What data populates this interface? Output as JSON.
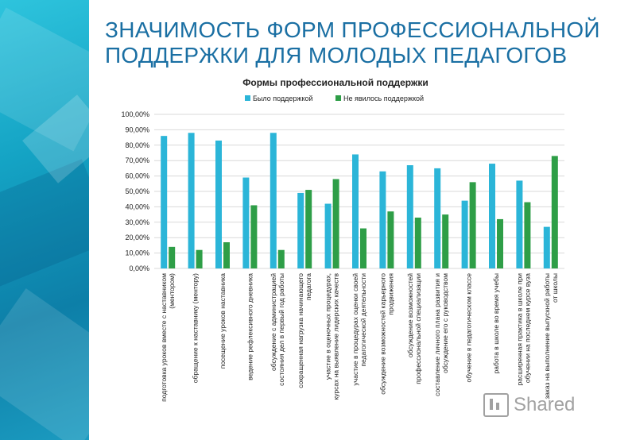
{
  "slide": {
    "title_line1": "ЗНАЧИМОСТЬ ФОРМ ПРОФЕССИОНАЛЬНОЙ",
    "title_line2": "ПОДДЕРЖКИ ДЛЯ МОЛОДЫХ ПЕДАГОГОВ"
  },
  "watermark": {
    "text": "Shared",
    "icon": "presentation-icon"
  },
  "colors": {
    "series1": "#2bb5d8",
    "series2": "#2e9e47",
    "accent": "#1a6fa3",
    "grid": "#d9d9d9",
    "text": "#333333"
  },
  "chart_data": {
    "type": "bar",
    "title": "Формы профессиональной поддержки",
    "legend_position": "top",
    "grid": true,
    "ylim": [
      0,
      100
    ],
    "yticks": [
      "0,00%",
      "10,00%",
      "20,00%",
      "30,00%",
      "40,00%",
      "50,00%",
      "60,00%",
      "70,00%",
      "80,00%",
      "90,00%",
      "100,00%"
    ],
    "categories": [
      [
        "подготовка уроков вместе с наставником",
        "(ментором)"
      ],
      [
        "обращение к наставнику (ментору)"
      ],
      [
        "посещение уроков наставника"
      ],
      [
        "ведение рефлексивного дневника"
      ],
      [
        "обсуждение с администрацией",
        "состояния дел в первый год работы"
      ],
      [
        "сокращенная нагрузка начинающего",
        "педагога"
      ],
      [
        "участие в оценочных процедурах,",
        "курсах на выявление лидерских качеств"
      ],
      [
        "участие в процедурах оценки своей",
        "педагогической деятельности"
      ],
      [
        "обсуждение возможностей карьерного",
        "продвижения"
      ],
      [
        "обсуждение возможностей",
        "профессиональной специализации"
      ],
      [
        "составление личного плана развития и",
        "обсуждение его с руководством"
      ],
      [
        "обучение в педагогическом классе"
      ],
      [
        "работа в школе во время учебы"
      ],
      [
        "расширенная практика в школе при",
        "обучении на последнем курсе вуза"
      ],
      [
        "заказ на выполнение выпускной работы",
        "от школы"
      ]
    ],
    "series": [
      {
        "name": "Было поддержкой",
        "values": [
          86,
          88,
          83,
          59,
          88,
          49,
          42,
          74,
          63,
          67,
          65,
          44,
          68,
          57,
          27
        ]
      },
      {
        "name": "Не явилось поддержкой",
        "values": [
          14,
          12,
          17,
          41,
          12,
          51,
          58,
          26,
          37,
          33,
          35,
          56,
          32,
          43,
          73
        ]
      }
    ]
  }
}
